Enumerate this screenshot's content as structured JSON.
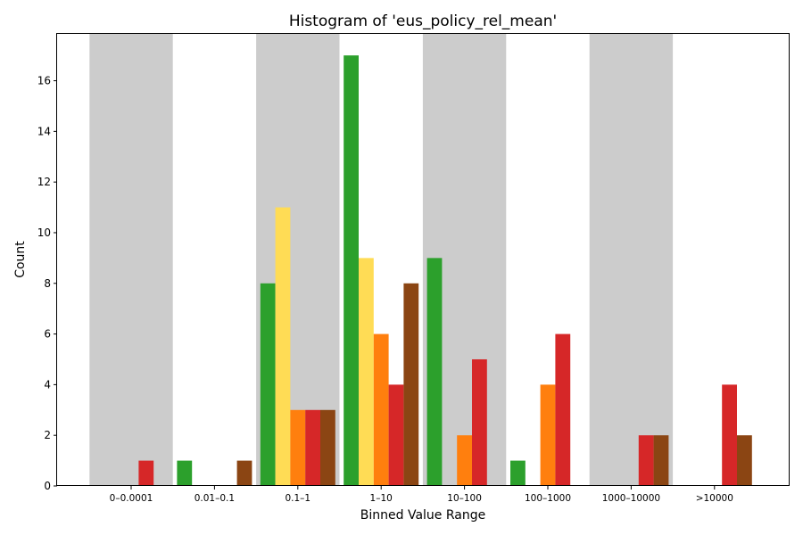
{
  "chart_data": {
    "type": "bar",
    "title": "Histogram of 'eus_policy_rel_mean'",
    "xlabel": "Binned Value Range",
    "ylabel": "Count",
    "categories": [
      "0–0.0001",
      "0.01–0.1",
      "0.1–1",
      "1–10",
      "10–100",
      "100–1000",
      "1000–10000",
      ">10000"
    ],
    "series": [
      {
        "color": "#2ca02c",
        "values": [
          0,
          1,
          8,
          17,
          9,
          1,
          0,
          0
        ]
      },
      {
        "color": "#ffdc55",
        "values": [
          0,
          0,
          11,
          9,
          0,
          0,
          0,
          0
        ]
      },
      {
        "color": "#ff7f0e",
        "values": [
          0,
          0,
          3,
          6,
          2,
          4,
          0,
          0
        ]
      },
      {
        "color": "#d62728",
        "values": [
          1,
          0,
          3,
          4,
          5,
          6,
          2,
          4
        ]
      },
      {
        "color": "#8b4513",
        "values": [
          0,
          1,
          3,
          8,
          0,
          0,
          2,
          2
        ]
      }
    ],
    "ylim": [
      0,
      17.85
    ],
    "yticks": [
      0,
      2,
      4,
      6,
      8,
      10,
      12,
      14,
      16
    ],
    "shaded_bands": [
      "0–0.0001",
      "0.1–1",
      "10–100",
      "1000–10000"
    ],
    "band_color": "#cccccc",
    "grid": false,
    "legend": "none"
  }
}
